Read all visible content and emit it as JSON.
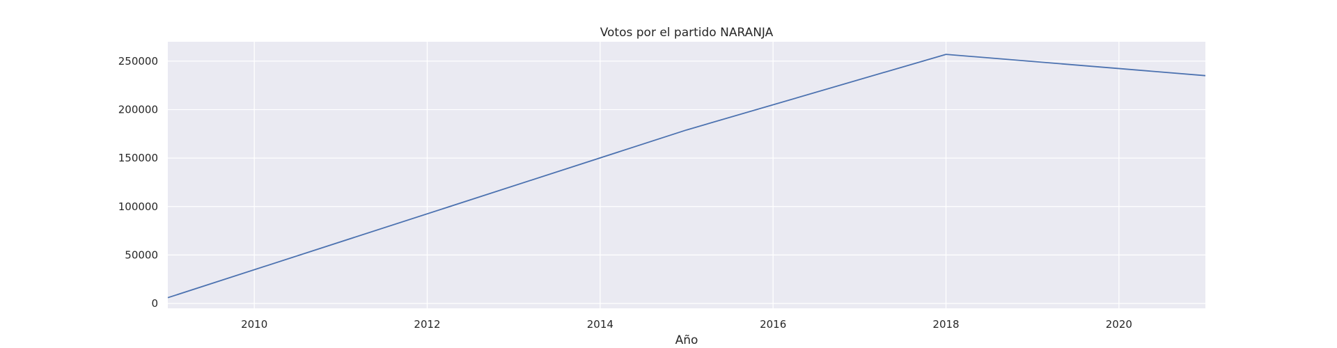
{
  "chart_data": {
    "type": "line",
    "title": "Votos por el partido NARANJA",
    "xlabel": "Año",
    "ylabel": "",
    "x": [
      2009,
      2015,
      2018,
      2021
    ],
    "series": [
      {
        "values": [
          6000,
          179000,
          257000,
          235000
        ],
        "color": "#4c72b0"
      }
    ],
    "xlim": [
      2009,
      2021
    ],
    "ylim": [
      -5000,
      270000
    ],
    "xticks": [
      "2010",
      "2012",
      "2014",
      "2016",
      "2018",
      "2020"
    ],
    "yticks": [
      "0",
      "50000",
      "100000",
      "150000",
      "200000",
      "250000"
    ],
    "grid": true,
    "legend": "none",
    "colors": {
      "plot_background": "#eaeaf2",
      "grid": "#ffffff",
      "line": "#4c72b0"
    }
  }
}
